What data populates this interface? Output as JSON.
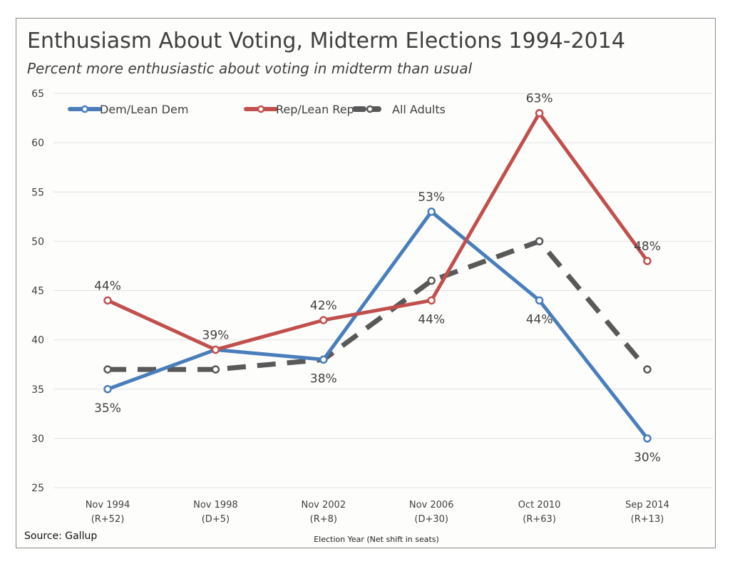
{
  "chart_data": {
    "type": "line",
    "title": "Enthusiasm About Voting, Midterm Elections 1994-2014",
    "subtitle": "Percent more enthusiastic about voting in midterm than usual",
    "xlabel": "Election Year (Net shift in seats)",
    "ylabel": "",
    "categories": [
      [
        "Nov 1994",
        "(R+52)"
      ],
      [
        "Nov 1998",
        "(D+5)"
      ],
      [
        "Nov 2002",
        "(R+8)"
      ],
      [
        "Nov 2006",
        "(D+30)"
      ],
      [
        "Oct 2010",
        "(R+63)"
      ],
      [
        "Sep 2014",
        "(R+13)"
      ]
    ],
    "ylim": [
      25,
      65
    ],
    "yticks": [
      25,
      30,
      35,
      40,
      45,
      50,
      55,
      60,
      65
    ],
    "grid": true,
    "legend_position": "top-left",
    "series": [
      {
        "name": "Dem/Lean Dem",
        "values": [
          35,
          39,
          38,
          53,
          44,
          30
        ],
        "color": "#4a7ebb",
        "dashed": false,
        "labels": [
          "35%",
          "39%",
          "38%",
          "53%",
          "44%",
          "30%"
        ],
        "label_pos": [
          "below",
          "none",
          "below",
          "above",
          "below",
          "below"
        ]
      },
      {
        "name": "Rep/Lean Rep",
        "values": [
          44,
          39,
          42,
          44,
          63,
          48
        ],
        "color": "#c0504d",
        "dashed": false,
        "labels": [
          "44%",
          "39%",
          "42%",
          "44%",
          "63%",
          "48%"
        ],
        "label_pos": [
          "above",
          "above",
          "above",
          "below",
          "above",
          "above"
        ]
      },
      {
        "name": "All Adults",
        "values": [
          37,
          37,
          38,
          46,
          50,
          37
        ],
        "color": "#595959",
        "dashed": true
      }
    ]
  },
  "source": "Source: Gallup"
}
